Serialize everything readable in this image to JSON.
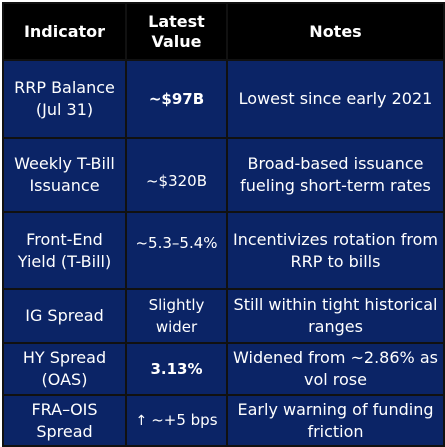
{
  "table": {
    "headers": [
      "Indicator",
      "Latest Value",
      "Notes"
    ],
    "rows": [
      {
        "indicator": "RRP Balance (Jul 31)",
        "value": "~$97B",
        "notes": "Lowest since early 2021"
      },
      {
        "indicator": "Weekly T-Bill Issuance",
        "value": "~$320B",
        "notes": "Broad-based issuance fueling short-term rates"
      },
      {
        "indicator": "Front-End Yield (T-Bill)",
        "value": "~5.3–5.4%",
        "notes": "Incentivizes rotation from RRP to bills"
      },
      {
        "indicator": "IG Spread",
        "value": "Slightly wider",
        "notes": "Still within tight historical ranges"
      },
      {
        "indicator": "HY Spread (OAS)",
        "value": "3.13%",
        "notes": "Widened from ~2.86% as vol rose"
      },
      {
        "indicator": "FRA–OIS Spread",
        "value_arrow": "↑",
        "value": "~+5 bps",
        "notes": "Early warning of funding friction"
      }
    ]
  },
  "colors": {
    "header_bg": "#000000",
    "cell_bg": "#0b2466",
    "text": "#ffffff",
    "border": "#111111"
  }
}
